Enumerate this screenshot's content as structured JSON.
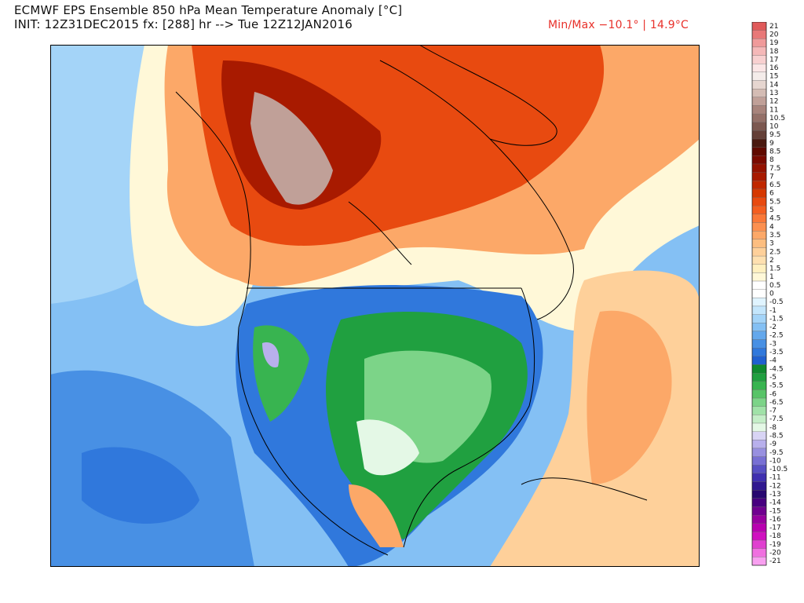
{
  "header": {
    "title": "ECMWF EPS Ensemble 850 hPa Mean Temperature Anomaly [°C]",
    "init": "INIT: 12Z31DEC2015 fx: [288] hr --> Tue 12Z12JAN2016",
    "minmax": "Min/Max −10.1° | 14.9°C",
    "minmax_color": "#e8302a"
  },
  "colorbar": {
    "levels": [
      {
        "label": "21",
        "color": "#e05a5a"
      },
      {
        "label": "20",
        "color": "#e87878"
      },
      {
        "label": "19",
        "color": "#f09a9a"
      },
      {
        "label": "18",
        "color": "#f5b8b8"
      },
      {
        "label": "17",
        "color": "#f8d0d0"
      },
      {
        "label": "16",
        "color": "#fbe6e6"
      },
      {
        "label": "15",
        "color": "#f4ecea"
      },
      {
        "label": "14",
        "color": "#e6d6d0"
      },
      {
        "label": "13",
        "color": "#d4bcb4"
      },
      {
        "label": "12",
        "color": "#c0a098"
      },
      {
        "label": "11",
        "color": "#a8847c"
      },
      {
        "label": "10.5",
        "color": "#947068"
      },
      {
        "label": "10",
        "color": "#7c5850"
      },
      {
        "label": "9.5",
        "color": "#644038"
      },
      {
        "label": "9",
        "color": "#4a1a10"
      },
      {
        "label": "8.5",
        "color": "#600a00"
      },
      {
        "label": "8",
        "color": "#7a0a00"
      },
      {
        "label": "7.5",
        "color": "#941200"
      },
      {
        "label": "7",
        "color": "#a81a00"
      },
      {
        "label": "6.5",
        "color": "#c02800"
      },
      {
        "label": "6",
        "color": "#d63800"
      },
      {
        "label": "5.5",
        "color": "#e84a10"
      },
      {
        "label": "5",
        "color": "#f45e20"
      },
      {
        "label": "4.5",
        "color": "#fa7838"
      },
      {
        "label": "4",
        "color": "#fc9050"
      },
      {
        "label": "3.5",
        "color": "#fca868"
      },
      {
        "label": "3",
        "color": "#fdbe80"
      },
      {
        "label": "2.5",
        "color": "#fed09a"
      },
      {
        "label": "2",
        "color": "#fee0b0"
      },
      {
        "label": "1.5",
        "color": "#fff0c0"
      },
      {
        "label": "1",
        "color": "#fff8d8"
      },
      {
        "label": "0.5",
        "color": "#ffffff"
      },
      {
        "label": "0",
        "color": "#ffffff"
      },
      {
        "label": "-0.5",
        "color": "#e0f4ff"
      },
      {
        "label": "-1",
        "color": "#c4e6fc"
      },
      {
        "label": "-1.5",
        "color": "#a4d4f8"
      },
      {
        "label": "-2",
        "color": "#84c0f4"
      },
      {
        "label": "-2.5",
        "color": "#64a8ec"
      },
      {
        "label": "-3",
        "color": "#4890e4"
      },
      {
        "label": "-3.5",
        "color": "#3078dc"
      },
      {
        "label": "-4",
        "color": "#2060d0"
      },
      {
        "label": "-4.5",
        "color": "#108a30"
      },
      {
        "label": "-5",
        "color": "#20a040"
      },
      {
        "label": "-5.5",
        "color": "#38b450"
      },
      {
        "label": "-6",
        "color": "#58c468"
      },
      {
        "label": "-6.5",
        "color": "#7cd488"
      },
      {
        "label": "-7",
        "color": "#a0e2a8"
      },
      {
        "label": "-7.5",
        "color": "#c4eec8"
      },
      {
        "label": "-8",
        "color": "#e4f8e6"
      },
      {
        "label": "-8.5",
        "color": "#d8d4f4"
      },
      {
        "label": "-9",
        "color": "#b8b0ec"
      },
      {
        "label": "-9.5",
        "color": "#9890e0"
      },
      {
        "label": "-10",
        "color": "#7870d4"
      },
      {
        "label": "-10.5",
        "color": "#5850c4"
      },
      {
        "label": "-11",
        "color": "#4030b0"
      },
      {
        "label": "-12",
        "color": "#301890"
      },
      {
        "label": "-13",
        "color": "#280870"
      },
      {
        "label": "-14",
        "color": "#480080"
      },
      {
        "label": "-15",
        "color": "#700090"
      },
      {
        "label": "-16",
        "color": "#9800a0"
      },
      {
        "label": "-17",
        "color": "#b800b0"
      },
      {
        "label": "-18",
        "color": "#d010c0"
      },
      {
        "label": "-19",
        "color": "#e040d0"
      },
      {
        "label": "-20",
        "color": "#f070e0"
      },
      {
        "label": "-21",
        "color": "#f8a0f0"
      }
    ]
  }
}
